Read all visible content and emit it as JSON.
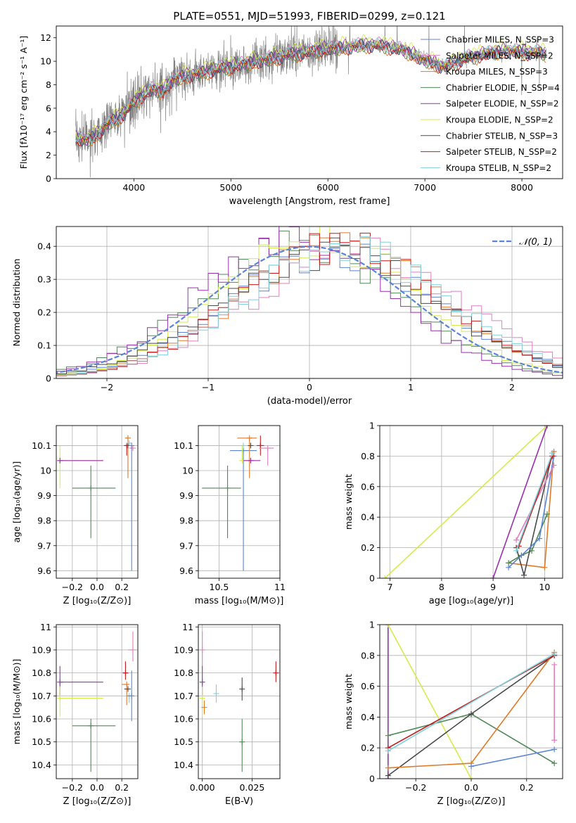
{
  "colors": {
    "chabrier_miles": "#5b84d8",
    "salpeter_miles": "#e07fc0",
    "kroupa_miles": "#e07a26",
    "chabrier_elodie": "#4f8a55",
    "salpeter_elodie": "#9a2fb0",
    "kroupa_elodie": "#d4ec4a",
    "chabrier_stelib": "#4a4a4a",
    "salpeter_stelib": "#c41a1a",
    "kroupa_stelib": "#7fd0dd",
    "data_spectrum": "#808080",
    "normal_curve": "#5b84d8"
  },
  "chart_data": [
    {
      "id": "spectrum",
      "type": "line",
      "title": "PLATE=0551, MJD=51993, FIBERID=0299, z=0.121",
      "xlabel": "wavelength [Angstrom, rest frame]",
      "ylabel": "Flux [fλ10⁻¹⁷ erg cm⁻² s⁻¹ A⁻¹]",
      "xlim": [
        3200,
        8420
      ],
      "ylim": [
        0,
        13
      ],
      "xticks": [
        4000,
        5000,
        6000,
        7000,
        8000
      ],
      "yticks": [
        0,
        2,
        4,
        6,
        8,
        10,
        12
      ],
      "grid": false,
      "legend_position": "top-right",
      "spectrum_wavelength_range": [
        3400,
        8250
      ],
      "continuum": {
        "x": [
          3400,
          3500,
          3600,
          3700,
          3800,
          3900,
          4000,
          4100,
          4200,
          4300,
          4400,
          4500,
          4600,
          4700,
          4800,
          4900,
          5000,
          5200,
          5400,
          5600,
          5800,
          6000,
          6200,
          6400,
          6600,
          6800,
          7000,
          7200,
          7400,
          7600,
          7800,
          8000,
          8200
        ],
        "y": [
          3.4,
          3.3,
          3.6,
          4.5,
          5.0,
          5.6,
          6.5,
          7.2,
          7.6,
          7.5,
          8.4,
          8.7,
          8.9,
          9.0,
          9.3,
          9.4,
          9.6,
          9.9,
          10.2,
          10.6,
          10.8,
          11.1,
          11.2,
          11.4,
          11.3,
          10.9,
          10.1,
          9.5,
          10.2,
          10.6,
          10.9,
          10.8,
          10.7
        ]
      },
      "series": [
        {
          "name": "Chabrier MILES, N_SSP=3",
          "color_key": "chabrier_miles"
        },
        {
          "name": "Salpeter MILES, N_SSP=2",
          "color_key": "salpeter_miles"
        },
        {
          "name": "Kroupa MILES, N_SSP=3",
          "color_key": "kroupa_miles"
        },
        {
          "name": "Chabrier ELODIE, N_SSP=4",
          "color_key": "chabrier_elodie"
        },
        {
          "name": "Salpeter ELODIE, N_SSP=2",
          "color_key": "salpeter_elodie"
        },
        {
          "name": "Kroupa ELODIE, N_SSP=2",
          "color_key": "kroupa_elodie"
        },
        {
          "name": "Chabrier STELIB, N_SSP=3",
          "color_key": "chabrier_stelib"
        },
        {
          "name": "Salpeter STELIB, N_SSP=2",
          "color_key": "salpeter_stelib"
        },
        {
          "name": "Kroupa STELIB, N_SSP=2",
          "color_key": "kroupa_stelib"
        }
      ]
    },
    {
      "id": "residuals",
      "type": "line",
      "xlabel": "(data-model)/error",
      "ylabel": "Normed distribution",
      "xlim": [
        -2.5,
        2.5
      ],
      "ylim": [
        0,
        0.46
      ],
      "xticks": [
        -2,
        -1,
        0,
        1,
        2
      ],
      "xtick_labels": [
        "−2",
        "−1",
        "0",
        "1",
        "2"
      ],
      "yticks": [
        0,
        0.1,
        0.2,
        0.3,
        0.4
      ],
      "grid": true,
      "legend_position": "top-right",
      "legend_label": "𝒩(0, 1)",
      "bin_edges_range": [
        -2.6,
        2.6
      ],
      "bin_width": 0.1,
      "histograms": [
        {
          "color_key": "chabrier_miles",
          "mean": 0.25,
          "std": 1.05
        },
        {
          "color_key": "salpeter_miles",
          "mean": 0.45,
          "std": 1.05
        },
        {
          "color_key": "kroupa_miles",
          "mean": 0.3,
          "std": 1.0
        },
        {
          "color_key": "chabrier_elodie",
          "mean": -0.1,
          "std": 1.0
        },
        {
          "color_key": "salpeter_elodie",
          "mean": -0.15,
          "std": 0.95
        },
        {
          "color_key": "kroupa_elodie",
          "mean": 0.1,
          "std": 0.95
        },
        {
          "color_key": "chabrier_stelib",
          "mean": 0.2,
          "std": 1.05
        },
        {
          "color_key": "salpeter_stelib",
          "mean": 0.3,
          "std": 1.0
        },
        {
          "color_key": "kroupa_stelib",
          "mean": 0.35,
          "std": 1.02
        }
      ]
    },
    {
      "id": "age_vs_Z",
      "type": "scatter",
      "xlabel": "Z [log₁₀(Z/Z⊙)]",
      "ylabel": "age  [log₁₀(age/yr)]",
      "xlim": [
        -0.33,
        0.33
      ],
      "ylim": [
        9.57,
        10.18
      ],
      "xticks": [
        -0.2,
        0.0,
        0.2
      ],
      "xtick_labels": [
        "−0.2",
        "0.0",
        "0.2"
      ],
      "yticks": [
        9.6,
        9.7,
        9.8,
        9.9,
        10.0,
        10.1
      ],
      "grid": true,
      "points": [
        {
          "color_key": "kroupa_elodie",
          "x": -0.3,
          "y": 10.04,
          "xerr": [
            0.0,
            0.35
          ],
          "yerr": [
            0.11,
            0.06
          ]
        },
        {
          "color_key": "salpeter_elodie",
          "x": -0.3,
          "y": 10.04,
          "xerr": [
            0.0,
            0.35
          ],
          "yerr": [
            0.0,
            0.0
          ]
        },
        {
          "color_key": "chabrier_elodie",
          "x": -0.05,
          "y": 9.93,
          "xerr": [
            0.15,
            0.2
          ],
          "yerr": [
            0.2,
            0.09
          ]
        },
        {
          "color_key": "kroupa_miles",
          "x": 0.25,
          "y": 10.13,
          "xerr": [
            0.02,
            0.0
          ],
          "yerr": [
            0.16,
            0.0
          ]
        },
        {
          "color_key": "salpeter_stelib",
          "x": 0.24,
          "y": 10.1,
          "xerr": [
            0.02,
            0.02
          ],
          "yerr": [
            0.04,
            0.0
          ]
        },
        {
          "color_key": "chabrier_stelib",
          "x": 0.25,
          "y": 10.1,
          "xerr": [
            0.02,
            0.02
          ],
          "yerr": [
            0.0,
            0.0
          ]
        },
        {
          "color_key": "salpeter_miles",
          "x": 0.29,
          "y": 10.09,
          "xerr": [
            0.03,
            0.0
          ],
          "yerr": [
            0.0,
            0.0
          ]
        },
        {
          "color_key": "kroupa_stelib",
          "x": 0.26,
          "y": 10.11,
          "xerr": [
            0.0,
            0.0
          ],
          "yerr": [
            0.0,
            0.0
          ]
        },
        {
          "color_key": "chabrier_miles",
          "x": 0.28,
          "y": 10.1,
          "xerr": [
            0.0,
            0.0
          ],
          "yerr": [
            0.5,
            0.0
          ]
        }
      ]
    },
    {
      "id": "age_vs_mass",
      "type": "scatter",
      "xlabel": "mass [log₁₀(M/M⊙)]",
      "ylabel": "",
      "xlim": [
        10.33,
        11.0
      ],
      "ylim": [
        9.57,
        10.18
      ],
      "xticks": [
        10.5,
        11.0
      ],
      "yticks": [
        9.6,
        9.7,
        9.8,
        9.9,
        10.0,
        10.1
      ],
      "grid": true,
      "points": [
        {
          "color_key": "chabrier_elodie",
          "x": 10.57,
          "y": 9.93,
          "xerr": [
            0.21,
            0.11
          ],
          "yerr": [
            0.2,
            0.09
          ]
        },
        {
          "color_key": "chabrier_miles",
          "x": 10.7,
          "y": 10.08,
          "xerr": [
            0.11,
            0.11
          ],
          "yerr": [
            0.48,
            0.0
          ]
        },
        {
          "color_key": "kroupa_elodie",
          "x": 10.69,
          "y": 10.04,
          "xerr": [
            0.0,
            0.08
          ],
          "yerr": [
            0.0,
            0.06
          ]
        },
        {
          "color_key": "kroupa_miles",
          "x": 10.75,
          "y": 10.13,
          "xerr": [
            0.1,
            0.06
          ],
          "yerr": [
            0.16,
            0.0
          ]
        },
        {
          "color_key": "salpeter_elodie",
          "x": 10.76,
          "y": 10.04,
          "xerr": [
            0.06,
            0.08
          ],
          "yerr": [
            0.0,
            0.0
          ]
        },
        {
          "color_key": "salpeter_stelib",
          "x": 10.84,
          "y": 10.1,
          "xerr": [
            0.03,
            0.03
          ],
          "yerr": [
            0.04,
            0.04
          ]
        },
        {
          "color_key": "salpeter_miles",
          "x": 10.9,
          "y": 10.09,
          "xerr": [
            0.07,
            0.05
          ],
          "yerr": [
            0.07,
            0.0
          ]
        },
        {
          "color_key": "kroupa_stelib",
          "x": 10.7,
          "y": 10.1,
          "xerr": [
            0.0,
            0.0
          ],
          "yerr": [
            0.0,
            0.0
          ]
        },
        {
          "color_key": "chabrier_stelib",
          "x": 10.76,
          "y": 10.1,
          "xerr": [
            0.0,
            0.0
          ],
          "yerr": [
            0.0,
            0.0
          ]
        }
      ]
    },
    {
      "id": "weight_vs_age",
      "type": "line",
      "xlabel": "age  [log₁₀(age/yr)]",
      "ylabel": "mass weight",
      "xlim": [
        6.8,
        10.35
      ],
      "ylim": [
        0,
        1
      ],
      "xticks": [
        7,
        8,
        9,
        10
      ],
      "yticks": [
        0,
        0.2,
        0.4,
        0.6,
        0.8,
        1.0
      ],
      "grid": true,
      "series": [
        {
          "color_key": "kroupa_elodie",
          "x": [
            6.9,
            10.05
          ],
          "y": [
            0.0,
            1.0
          ]
        },
        {
          "color_key": "salpeter_elodie",
          "x": [
            9.0,
            10.05
          ],
          "y": [
            0.0,
            1.0
          ]
        },
        {
          "color_key": "kroupa_miles",
          "x": [
            9.3,
            10.0,
            10.18
          ],
          "y": [
            0.1,
            0.07,
            0.83
          ]
        },
        {
          "color_key": "chabrier_elodie",
          "x": [
            9.3,
            9.55,
            9.75,
            10.05
          ],
          "y": [
            0.1,
            0.15,
            0.18,
            0.42
          ]
        },
        {
          "color_key": "chabrier_stelib",
          "x": [
            9.45,
            9.6,
            10.15
          ],
          "y": [
            0.2,
            0.02,
            0.82
          ]
        },
        {
          "color_key": "chabrier_miles",
          "x": [
            9.3,
            9.9,
            10.18
          ],
          "y": [
            0.07,
            0.26,
            0.8
          ]
        },
        {
          "color_key": "salpeter_miles",
          "x": [
            9.45,
            10.18
          ],
          "y": [
            0.25,
            0.74
          ]
        },
        {
          "color_key": "salpeter_stelib",
          "x": [
            9.5,
            10.15
          ],
          "y": [
            0.21,
            0.8
          ]
        },
        {
          "color_key": "kroupa_stelib",
          "x": [
            9.45,
            10.15
          ],
          "y": [
            0.18,
            0.82
          ]
        }
      ]
    },
    {
      "id": "mass_vs_Z",
      "type": "scatter",
      "xlabel": "Z [log₁₀(Z/Z⊙)]",
      "ylabel": "mass [log₁₀(M/M⊙)]",
      "xlim": [
        -0.33,
        0.33
      ],
      "ylim": [
        10.34,
        11.01
      ],
      "xticks": [
        -0.2,
        0.0,
        0.2
      ],
      "xtick_labels": [
        "−0.2",
        "0.0",
        "0.2"
      ],
      "yticks": [
        10.4,
        10.5,
        10.6,
        10.7,
        10.8,
        10.9,
        11.0
      ],
      "grid": true,
      "points": [
        {
          "color_key": "salpeter_elodie",
          "x": -0.3,
          "y": 10.76,
          "xerr": [
            0.0,
            0.35
          ],
          "yerr": [
            0.06,
            0.07
          ]
        },
        {
          "color_key": "kroupa_elodie",
          "x": -0.3,
          "y": 10.69,
          "xerr": [
            0.0,
            0.35
          ],
          "yerr": [
            0.08,
            0.05
          ]
        },
        {
          "color_key": "chabrier_elodie",
          "x": -0.05,
          "y": 10.57,
          "xerr": [
            0.15,
            0.2
          ],
          "yerr": [
            0.2,
            0.03
          ]
        },
        {
          "color_key": "salpeter_stelib",
          "x": 0.23,
          "y": 10.8,
          "xerr": [
            0.02,
            0.02
          ],
          "yerr": [
            0.03,
            0.05
          ]
        },
        {
          "color_key": "kroupa_miles",
          "x": 0.24,
          "y": 10.75,
          "xerr": [
            0.04,
            0.02
          ],
          "yerr": [
            0.09,
            0.0
          ]
        },
        {
          "color_key": "chabrier_stelib",
          "x": 0.25,
          "y": 10.73,
          "xerr": [
            0.03,
            0.0
          ],
          "yerr": [
            0.0,
            0.0
          ]
        },
        {
          "color_key": "kroupa_stelib",
          "x": 0.26,
          "y": 10.7,
          "xerr": [
            0.0,
            0.0
          ],
          "yerr": [
            0.03,
            0.0
          ]
        },
        {
          "color_key": "chabrier_miles",
          "x": 0.28,
          "y": 10.7,
          "xerr": [
            0.04,
            0.0
          ],
          "yerr": [
            0.11,
            0.11
          ]
        },
        {
          "color_key": "salpeter_miles",
          "x": 0.29,
          "y": 10.9,
          "xerr": [
            0.04,
            0.0
          ],
          "yerr": [
            0.05,
            0.08
          ]
        }
      ]
    },
    {
      "id": "mass_vs_ebv",
      "type": "scatter",
      "xlabel": "E(B-V)",
      "ylabel": "",
      "xlim": [
        -0.002,
        0.039
      ],
      "ylim": [
        10.34,
        11.01
      ],
      "xticks": [
        0.0,
        0.025
      ],
      "xtick_labels": [
        "0.000",
        "0.025"
      ],
      "yticks": [
        10.4,
        10.5,
        10.6,
        10.7,
        10.8,
        10.9,
        11.0
      ],
      "grid": true,
      "points": [
        {
          "color_key": "salpeter_miles",
          "x": 0.0,
          "y": 10.9,
          "xerr": [
            0.0,
            0.0
          ],
          "yerr": [
            0.07,
            0.08
          ]
        },
        {
          "color_key": "salpeter_elodie",
          "x": 0.0,
          "y": 10.76,
          "xerr": [
            0.0,
            0.0
          ],
          "yerr": [
            0.06,
            0.07
          ]
        },
        {
          "color_key": "kroupa_elodie",
          "x": 0.0,
          "y": 10.69,
          "xerr": [
            0.0,
            0.0
          ],
          "yerr": [
            0.08,
            0.05
          ]
        },
        {
          "color_key": "kroupa_miles",
          "x": 0.001,
          "y": 10.65,
          "xerr": [
            0.0,
            0.0
          ],
          "yerr": [
            0.03,
            0.03
          ]
        },
        {
          "color_key": "kroupa_stelib",
          "x": 0.007,
          "y": 10.71,
          "xerr": [
            0.0,
            0.0
          ],
          "yerr": [
            0.04,
            0.04
          ]
        },
        {
          "color_key": "chabrier_stelib",
          "x": 0.02,
          "y": 10.73,
          "xerr": [
            0.0,
            0.0
          ],
          "yerr": [
            0.05,
            0.05
          ]
        },
        {
          "color_key": "chabrier_elodie",
          "x": 0.02,
          "y": 10.5,
          "xerr": [
            0.0,
            0.0
          ],
          "yerr": [
            0.13,
            0.1
          ]
        },
        {
          "color_key": "salpeter_stelib",
          "x": 0.037,
          "y": 10.8,
          "xerr": [
            0.0,
            0.0
          ],
          "yerr": [
            0.04,
            0.05
          ]
        }
      ]
    },
    {
      "id": "weight_vs_Z",
      "type": "line",
      "xlabel": "Z [log₁₀(Z/Z⊙)]",
      "ylabel": "mass weight",
      "xlim": [
        -0.33,
        0.33
      ],
      "ylim": [
        0,
        1
      ],
      "xticks": [
        -0.2,
        0.0,
        0.2
      ],
      "xtick_labels": [
        "−0.2",
        "0.0",
        "0.2"
      ],
      "yticks": [
        0,
        0.2,
        0.4,
        0.6,
        0.8,
        1.0
      ],
      "grid": true,
      "series": [
        {
          "color_key": "salpeter_elodie",
          "x": [
            -0.3,
            -0.3
          ],
          "y": [
            0.0,
            1.0
          ]
        },
        {
          "color_key": "kroupa_elodie",
          "x": [
            -0.3,
            0.0
          ],
          "y": [
            1.0,
            0.0
          ]
        },
        {
          "color_key": "chabrier_elodie",
          "x": [
            -0.3,
            0.0,
            0.3
          ],
          "y": [
            0.28,
            0.42,
            0.1
          ]
        },
        {
          "color_key": "chabrier_stelib",
          "x": [
            -0.3,
            0.0,
            0.3
          ],
          "y": [
            0.02,
            0.42,
            0.8
          ]
        },
        {
          "color_key": "kroupa_miles",
          "x": [
            -0.3,
            0.0,
            0.3
          ],
          "y": [
            0.07,
            0.1,
            0.82
          ]
        },
        {
          "color_key": "chabrier_miles",
          "x": [
            0.0,
            0.3
          ],
          "y": [
            0.08,
            0.19
          ]
        },
        {
          "color_key": "salpeter_stelib",
          "x": [
            -0.3,
            0.3
          ],
          "y": [
            0.2,
            0.8
          ]
        },
        {
          "color_key": "kroupa_stelib",
          "x": [
            -0.3,
            0.3
          ],
          "y": [
            0.18,
            0.81
          ]
        },
        {
          "color_key": "salpeter_miles",
          "x": [
            0.3,
            0.3
          ],
          "y": [
            0.25,
            0.74
          ]
        }
      ]
    }
  ]
}
